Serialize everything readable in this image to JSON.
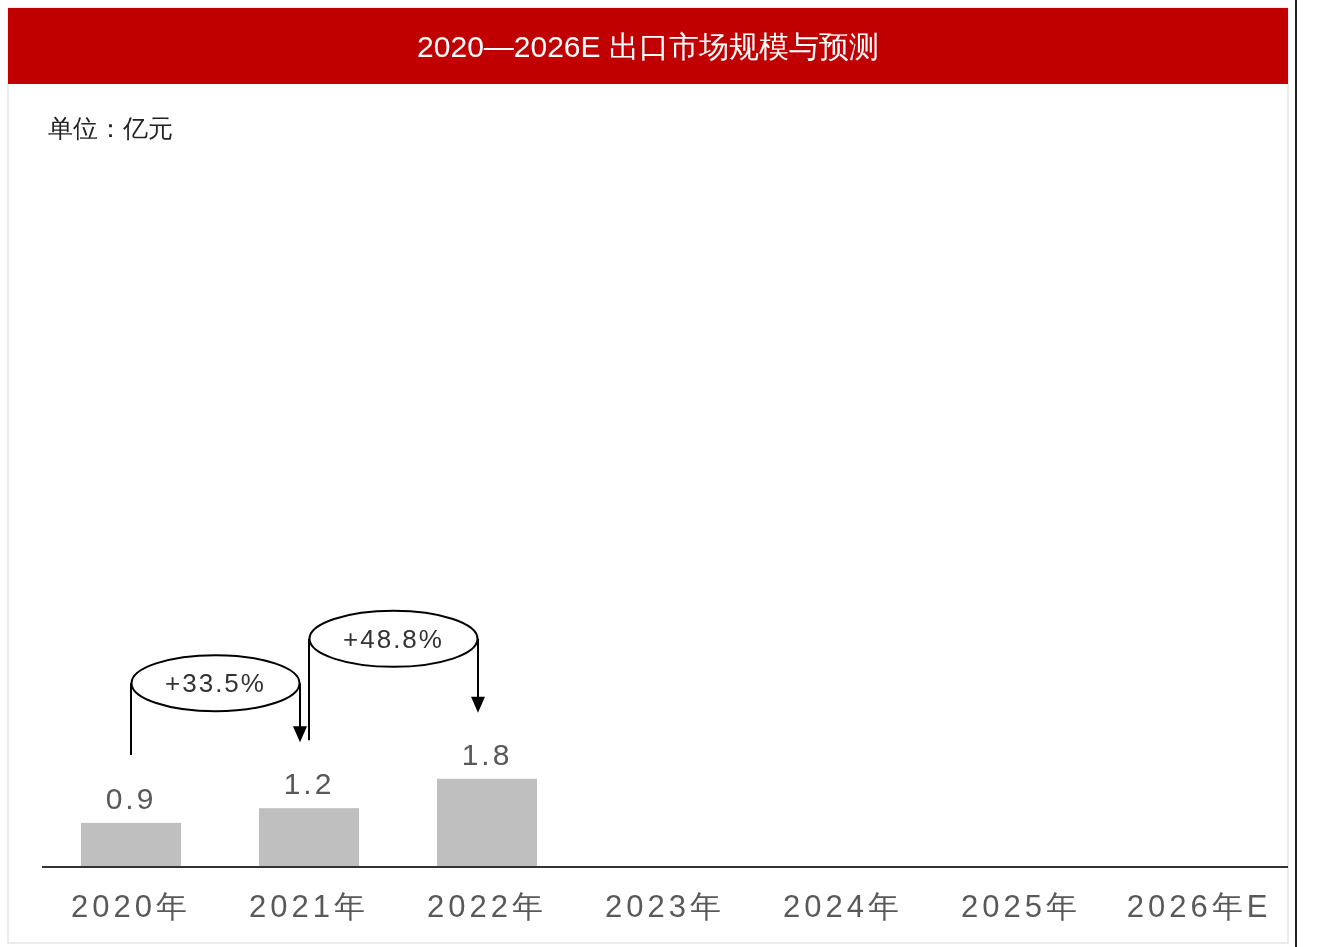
{
  "chart_data": {
    "type": "bar",
    "title": "2020—2026E 出口市场规模与预测",
    "categories": [
      "2020年",
      "2021年",
      "2022年",
      "2023年",
      "2024年",
      "2025年",
      "2026年E"
    ],
    "values": [
      0.9,
      1.2,
      1.8,
      null,
      null,
      null,
      null
    ],
    "colors": [
      "#bfbfbf",
      "#bfbfbf",
      "#bfbfbf",
      null,
      null,
      null,
      null
    ],
    "data_labels": true,
    "annotations": [
      "单位：亿元",
      "+33.5%",
      "+48.8%"
    ]
  }
}
